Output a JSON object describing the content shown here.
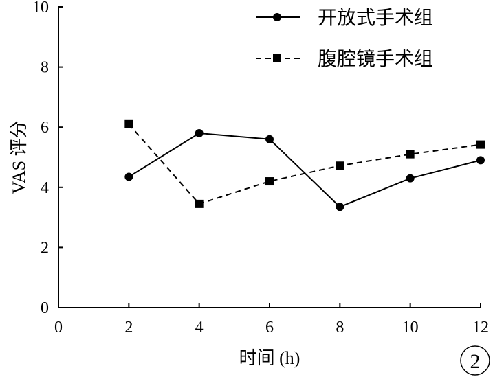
{
  "chart_data": {
    "type": "line",
    "xlabel": "时间 (h)",
    "ylabel": "VAS 评分",
    "xlim": [
      0,
      12
    ],
    "ylim": [
      0,
      10
    ],
    "x_ticks": [
      "0",
      "2",
      "4",
      "6",
      "8",
      "10",
      "12"
    ],
    "y_ticks": [
      "0",
      "2",
      "4",
      "6",
      "8",
      "10"
    ],
    "x": [
      2,
      4,
      6,
      8,
      10,
      12
    ],
    "series": [
      {
        "name": "开放式手术组",
        "marker": "circle",
        "line": "solid",
        "values": [
          4.35,
          5.8,
          5.6,
          3.35,
          4.3,
          4.9
        ]
      },
      {
        "name": "腹腔镜手术组",
        "marker": "square",
        "line": "dashed",
        "values": [
          6.1,
          3.45,
          4.2,
          4.72,
          5.1,
          5.42
        ]
      }
    ],
    "legend_position": "top-right",
    "grid": false
  },
  "panel_label": "2",
  "colors": {
    "line": "#000000",
    "background": "#ffffff"
  }
}
